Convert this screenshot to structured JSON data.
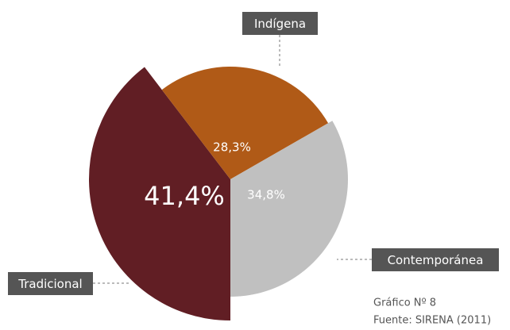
{
  "chart_data": {
    "type": "pie",
    "categories": [
      "Tradicional",
      "Indígena",
      "Contemporánea"
    ],
    "values": [
      41.4,
      28.3,
      34.8
    ],
    "value_labels": [
      "41,4%",
      "28,3%",
      "34,8%"
    ],
    "colors": [
      "#611e24",
      "#b05a17",
      "#c0c0c0"
    ],
    "notes": [
      "Gráfico Nº 8",
      "Fuente: SIRENA (2011)"
    ]
  }
}
